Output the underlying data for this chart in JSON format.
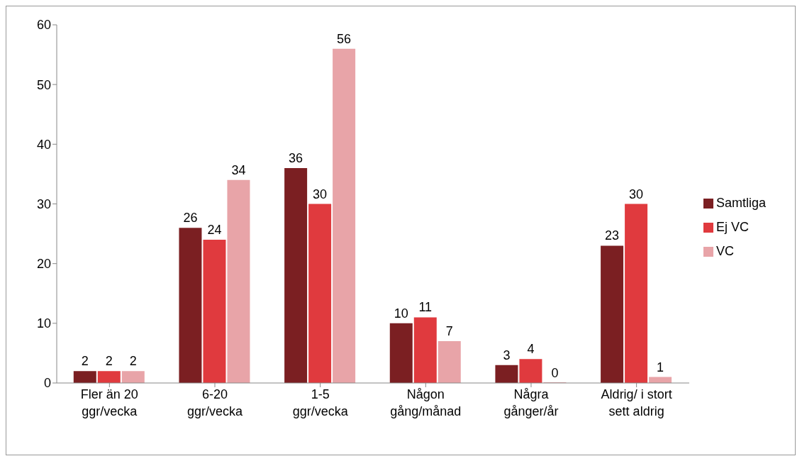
{
  "chart_data": {
    "type": "bar",
    "categories": [
      "Fler än 20 ggr/vecka",
      "6-20 ggr/vecka",
      "1-5 ggr/vecka",
      "Någon gång/månad",
      "Några gånger/år",
      "Aldrig/ i stort sett aldrig"
    ],
    "series": [
      {
        "name": "Samtliga",
        "color": "#7b1f22",
        "values": [
          2,
          26,
          36,
          10,
          3,
          23
        ]
      },
      {
        "name": "Ej VC",
        "color": "#e03a3e",
        "values": [
          2,
          24,
          30,
          11,
          4,
          30
        ]
      },
      {
        "name": "VC",
        "color": "#e8a4a8",
        "values": [
          2,
          34,
          56,
          7,
          0,
          1
        ]
      }
    ],
    "ylim": [
      0,
      60
    ],
    "yticks": [
      0,
      10,
      20,
      30,
      40,
      50,
      60
    ],
    "grid": false,
    "legend": "right",
    "data_labels": true
  }
}
